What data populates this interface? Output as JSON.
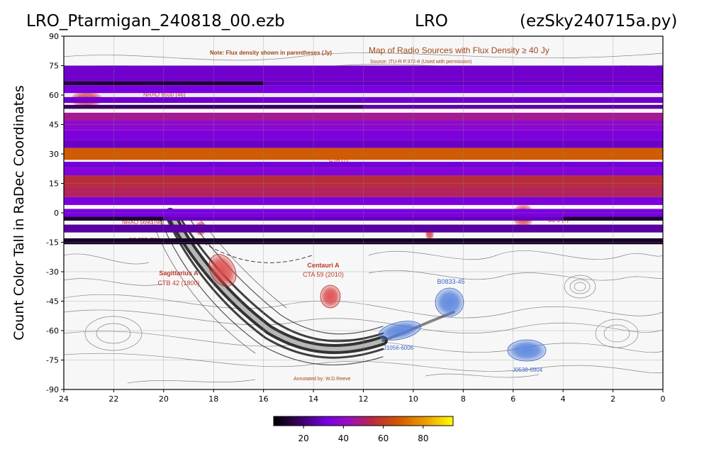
{
  "header": {
    "file_name": "LRO_Ptarmigan_240818_00.ezb",
    "site": "LRO",
    "script": "(ezSky240715a.py)"
  },
  "chart_data": {
    "type": "heatmap",
    "ylabel": "Count Color Tall in RaDec Coordinates",
    "xlabel": "",
    "x_ticks": [
      24,
      22,
      20,
      18,
      16,
      14,
      12,
      10,
      8,
      6,
      4,
      2,
      0
    ],
    "y_ticks": [
      90,
      75,
      60,
      45,
      30,
      15,
      0,
      -15,
      -30,
      -45,
      -60,
      -75,
      -90
    ],
    "xlim": [
      24,
      0
    ],
    "ylim": [
      -90,
      90
    ],
    "x_unit": "hours RA",
    "y_unit": "degrees Dec",
    "colormap": "gnuplot",
    "colorbar": {
      "ticks": [
        20,
        40,
        60,
        80
      ],
      "min": 5,
      "max": 95,
      "placement": "bottom"
    },
    "strips": [
      {
        "dec_top": 75,
        "dec_bottom": 67,
        "segments": [
          {
            "ra_from": 24,
            "ra_to": 0,
            "value": 30
          }
        ]
      },
      {
        "dec_top": 67,
        "dec_bottom": 65,
        "segments": [
          {
            "ra_from": 24,
            "ra_to": 16,
            "value": 12
          },
          {
            "ra_from": 16,
            "ra_to": 0,
            "value": 28
          }
        ]
      },
      {
        "dec_top": 65,
        "dec_bottom": 61,
        "segments": [
          {
            "ra_from": 24,
            "ra_to": 0,
            "value": 32
          }
        ]
      },
      {
        "dec_top": 59,
        "dec_bottom": 56,
        "segments": [
          {
            "ra_from": 24,
            "ra_to": 0,
            "value": 30
          }
        ]
      },
      {
        "dec_top": 55,
        "dec_bottom": 53,
        "segments": [
          {
            "ra_from": 24,
            "ra_to": 12,
            "value": 18
          },
          {
            "ra_from": 12,
            "ra_to": 0,
            "value": 26
          }
        ]
      },
      {
        "dec_top": 51,
        "dec_bottom": 47,
        "segments": [
          {
            "ra_from": 24,
            "ra_to": 0,
            "value": 47
          }
        ]
      },
      {
        "dec_top": 47,
        "dec_bottom": 42,
        "segments": [
          {
            "ra_from": 24,
            "ra_to": 0,
            "value": 38
          }
        ]
      },
      {
        "dec_top": 42,
        "dec_bottom": 37,
        "segments": [
          {
            "ra_from": 24,
            "ra_to": 0,
            "value": 33
          }
        ]
      },
      {
        "dec_top": 37,
        "dec_bottom": 33,
        "segments": [
          {
            "ra_from": 24,
            "ra_to": 0,
            "value": 29
          }
        ]
      },
      {
        "dec_top": 33,
        "dec_bottom": 27,
        "segments": [
          {
            "ra_from": 24,
            "ra_to": 0,
            "value": 68
          }
        ]
      },
      {
        "dec_top": 26,
        "dec_bottom": 23,
        "segments": [
          {
            "ra_from": 24,
            "ra_to": 0,
            "value": 31
          }
        ]
      },
      {
        "dec_top": 23,
        "dec_bottom": 19,
        "segments": [
          {
            "ra_from": 24,
            "ra_to": 0,
            "value": 35
          }
        ]
      },
      {
        "dec_top": 19,
        "dec_bottom": 13,
        "segments": [
          {
            "ra_from": 24,
            "ra_to": 0,
            "value": 55
          }
        ]
      },
      {
        "dec_top": 13,
        "dec_bottom": 8,
        "segments": [
          {
            "ra_from": 24,
            "ra_to": 0,
            "value": 52
          }
        ]
      },
      {
        "dec_top": 8,
        "dec_bottom": 4,
        "segments": [
          {
            "ra_from": 24,
            "ra_to": 0,
            "value": 33
          }
        ]
      },
      {
        "dec_top": 2,
        "dec_bottom": -2,
        "segments": [
          {
            "ra_from": 24,
            "ra_to": 0,
            "value": 32
          }
        ]
      },
      {
        "dec_top": -2,
        "dec_bottom": -4,
        "segments": [
          {
            "ra_from": 24,
            "ra_to": 20,
            "value": 12
          },
          {
            "ra_from": 20,
            "ra_to": 4,
            "value": 28
          },
          {
            "ra_from": 4,
            "ra_to": 0,
            "value": 12
          }
        ]
      },
      {
        "dec_top": -6,
        "dec_bottom": -10,
        "segments": [
          {
            "ra_from": 24,
            "ra_to": 0,
            "value": 25
          }
        ]
      },
      {
        "dec_top": -13,
        "dec_bottom": -16,
        "segments": [
          {
            "ra_from": 24,
            "ra_to": 0,
            "value": 10
          }
        ]
      }
    ]
  },
  "overlay": {
    "map_title": "Map of Radio Sources with Flux Density ≥ 40 Jy",
    "source_line": "Source: ITU-R P.372-8 (Used with permission)",
    "note": "Note: Flux density shown in parentheses (Jy)",
    "annotated_by": "Annotated by: W.D.Reeve",
    "sources_red": [
      {
        "name": "Sagittarius A",
        "flux": "CTB 42 (1800)"
      },
      {
        "name": "Centauri A",
        "flux": "CTA 59 (2010)"
      }
    ],
    "partial_labels": [
      {
        "text": "NRAO 6500 (46)"
      },
      {
        "text": "NRAO 5690 (90)"
      },
      {
        "text": "3C 10 (44)"
      },
      {
        "text": "3C 227 (51)"
      },
      {
        "text": "3C 3 (?)"
      },
      {
        "text": "CTA (?)"
      }
    ],
    "sources_blue": [
      {
        "name": "B0833-45"
      },
      {
        "name": "J1056-6006"
      },
      {
        "name": "J0538-6904"
      }
    ]
  },
  "colors": {
    "contours": "#555555",
    "galactic_plane": "#111111",
    "red_source": "#d94040",
    "blue_source": "#4a78d8"
  }
}
